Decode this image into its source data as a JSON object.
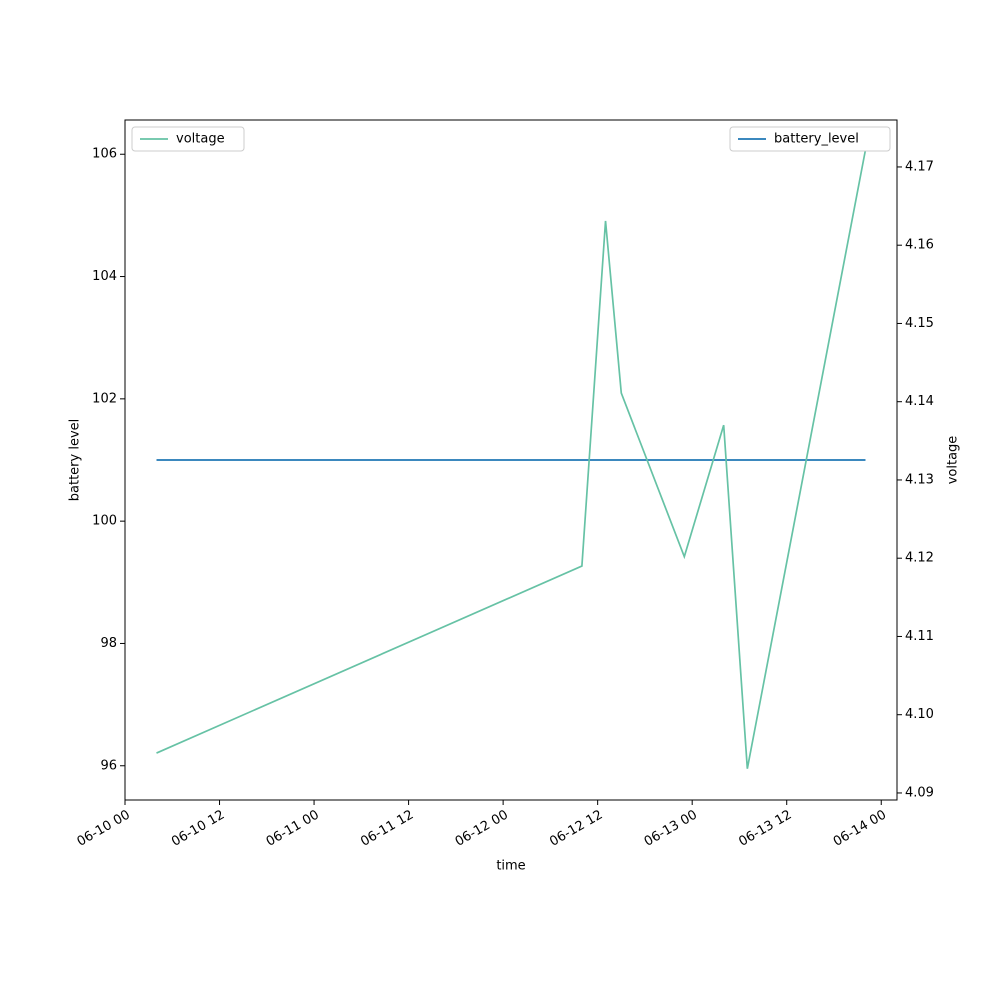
{
  "chart_data": {
    "type": "line",
    "xlabel": "time",
    "ylabel": "battery level",
    "y2label": "voltage",
    "x": [
      "06-10 04",
      "06-12 10",
      "06-12 13",
      "06-12 15",
      "06-12 23",
      "06-13 04",
      "06-13 07",
      "06-13 22"
    ],
    "series": [
      {
        "name": "battery_level",
        "color": "#1f77b4",
        "legend": "upper right",
        "values": [
          101,
          101,
          101,
          101,
          101,
          101,
          101,
          101
        ]
      },
      {
        "name": "voltage",
        "color": "#66c2a5",
        "axis": "y2",
        "legend": "upper left",
        "values": [
          4.0951,
          4.119,
          4.1631,
          4.1411,
          4.1202,
          4.137,
          4.0931,
          4.1722
        ]
      }
    ],
    "xlim": [
      "06-10 00",
      "06-14 02"
    ],
    "xticks": [
      "06-10 00",
      "06-10 12",
      "06-11 00",
      "06-11 12",
      "06-12 00",
      "06-12 12",
      "06-13 00",
      "06-13 12",
      "06-14 00"
    ],
    "ylim": [
      95.44,
      106.56
    ],
    "yticks": [
      96,
      98,
      100,
      102,
      104,
      106
    ],
    "y2lim": [
      4.0891,
      4.176
    ],
    "y2ticks": [
      4.09,
      {
        "value": 4.1,
        "label": "4.10"
      },
      4.11,
      4.12,
      4.13,
      4.14,
      4.15,
      4.16,
      4.17
    ],
    "grid": false
  }
}
